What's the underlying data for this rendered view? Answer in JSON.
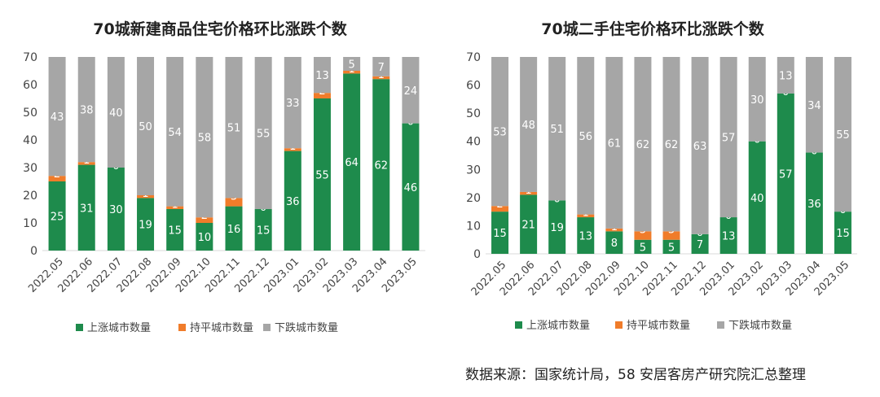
{
  "colors": {
    "up": "#1e8b4c",
    "flat": "#f07c2a",
    "down": "#a6a6a6"
  },
  "source_note": "数据来源：国家统计局，58 安居客房产研究院汇总整理",
  "chart_data": [
    {
      "type": "bar",
      "stacked": true,
      "title": "70城新建商品住宅价格环比涨跌个数",
      "categories": [
        "2022.05",
        "2022.06",
        "2022.07",
        "2022.08",
        "2022.09",
        "2022.10",
        "2022.11",
        "2022.12",
        "2023.01",
        "2023.02",
        "2023.03",
        "2023.04",
        "2023.05"
      ],
      "ylim": [
        0,
        70
      ],
      "yticks": [
        0,
        10,
        20,
        30,
        40,
        50,
        60,
        70
      ],
      "series": [
        {
          "name": "上涨城市数量",
          "color_key": "up",
          "values": [
            25,
            31,
            30,
            19,
            15,
            10,
            16,
            15,
            36,
            55,
            64,
            62,
            46
          ]
        },
        {
          "name": "持平城市数量",
          "color_key": "flat",
          "values": [
            2,
            1,
            0,
            1,
            1,
            2,
            3,
            0,
            1,
            2,
            1,
            1,
            0
          ]
        },
        {
          "name": "下跌城市数量",
          "color_key": "down",
          "values": [
            43,
            38,
            40,
            50,
            54,
            58,
            51,
            55,
            33,
            13,
            5,
            7,
            24
          ]
        }
      ]
    },
    {
      "type": "bar",
      "stacked": true,
      "title": "70城二手住宅价格环比涨跌个数",
      "categories": [
        "2022.05",
        "2022.06",
        "2022.07",
        "2022.08",
        "2022.09",
        "2022.10",
        "2022.11",
        "2022.12",
        "2023.01",
        "2023.02",
        "2023.03",
        "2023.04",
        "2023.05"
      ],
      "ylim": [
        0,
        70
      ],
      "yticks": [
        0,
        10,
        20,
        30,
        40,
        50,
        60,
        70
      ],
      "series": [
        {
          "name": "上涨城市数量",
          "color_key": "up",
          "values": [
            15,
            21,
            19,
            13,
            8,
            5,
            5,
            7,
            13,
            40,
            57,
            36,
            15
          ]
        },
        {
          "name": "持平城市数量",
          "color_key": "flat",
          "values": [
            2,
            1,
            0,
            1,
            1,
            3,
            3,
            0,
            0,
            0,
            0,
            0,
            0
          ]
        },
        {
          "name": "下跌城市数量",
          "color_key": "down",
          "values": [
            53,
            48,
            51,
            56,
            61,
            62,
            62,
            63,
            57,
            30,
            13,
            34,
            55
          ]
        }
      ]
    }
  ]
}
